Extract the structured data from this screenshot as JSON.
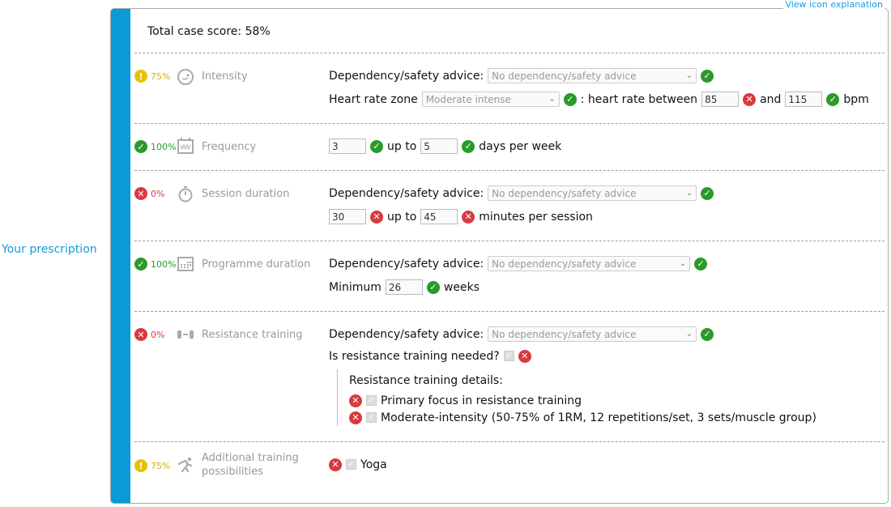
{
  "view_icon_link": "View icon explanation",
  "side_label": "Your prescription",
  "total": "Total case score: 58%",
  "colors": {
    "accent": "#0a9ad6",
    "ok": "#2a9a2a",
    "bad": "#d83a3f",
    "warn": "#e8c200"
  },
  "dep_label": "Dependency/safety advice:",
  "dep_value": "No dependency/safety advice",
  "intensity": {
    "score": "75%",
    "label": "Intensity",
    "icon": "face-icon",
    "hr_label": "Heart rate zone",
    "hr_value": "Moderate intense",
    "between": ": heart rate between",
    "hr_min": "85",
    "and": "and",
    "hr_max": "115",
    "bpm": "bpm"
  },
  "frequency": {
    "score": "100%",
    "label": "Frequency",
    "icon": "calendar-wave-icon",
    "min": "3",
    "upto": "up to",
    "max": "5",
    "unit": "days per week"
  },
  "session": {
    "score": "0%",
    "label": "Session duration",
    "icon": "stopwatch-icon",
    "min": "30",
    "upto": "up to",
    "max": "45",
    "unit": "minutes per session"
  },
  "programme": {
    "score": "100%",
    "label": "Programme duration",
    "icon": "calendar-grid-icon",
    "min_label": "Minimum",
    "min": "26",
    "unit": "weeks"
  },
  "resistance": {
    "score": "0%",
    "label": "Resistance training",
    "icon": "dumbbell-icon",
    "needed": "Is resistance training needed?",
    "details": "Resistance training details:",
    "items": [
      "Primary focus in resistance training",
      "Moderate-intensity (50-75% of 1RM, 12 repetitions/set, 3 sets/muscle group)"
    ]
  },
  "additional": {
    "score": "75%",
    "label": "Additional training possibilities",
    "icon": "running-icon",
    "item": "Yoga"
  }
}
